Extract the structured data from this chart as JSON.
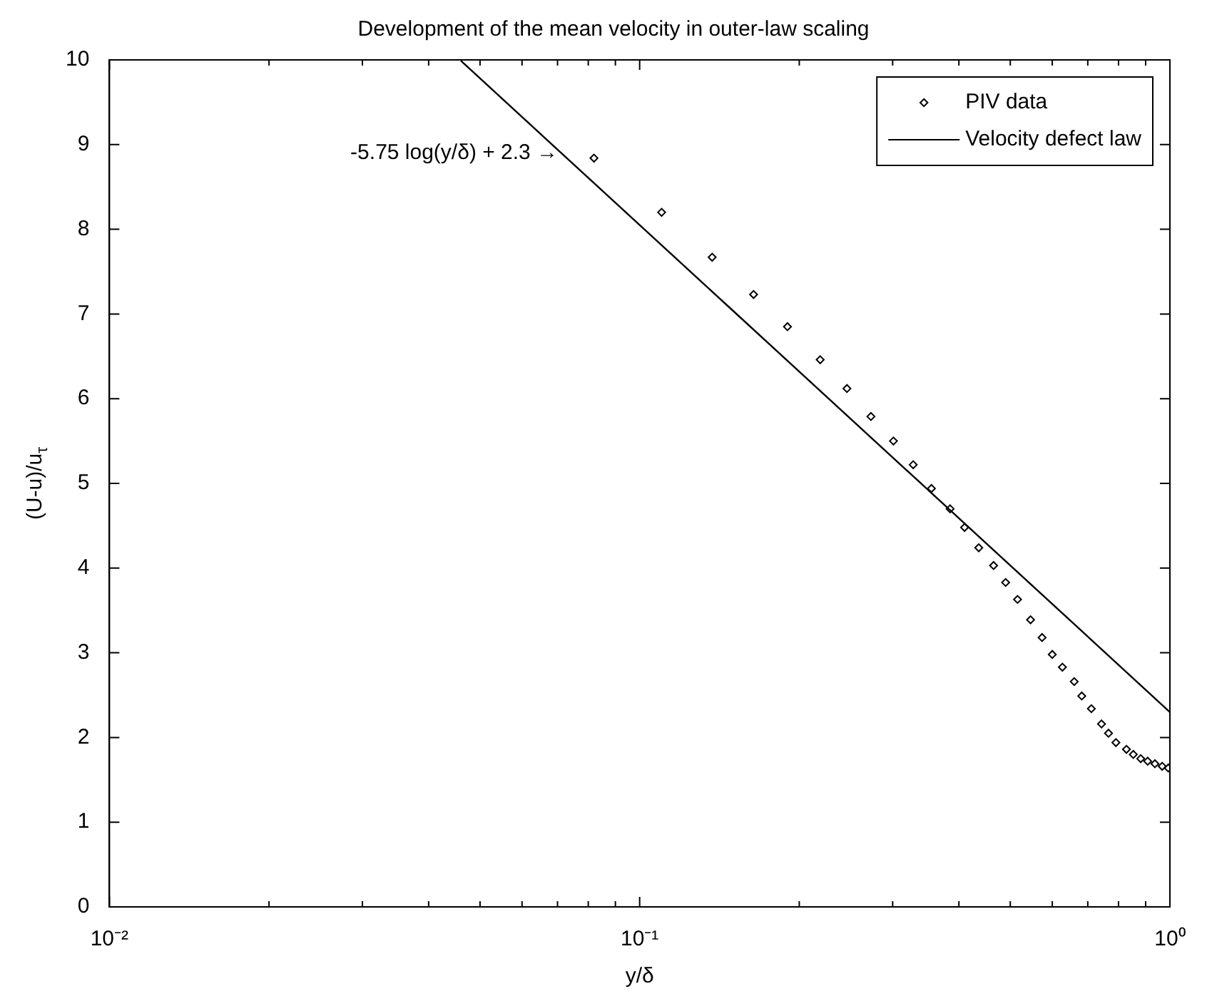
{
  "chart_data": {
    "type": "scatter",
    "title": "Development of the mean velocity in outer-law scaling",
    "xlabel": "y/δ",
    "ylabel": "(U-u)/u$_{τ}$",
    "log": "x",
    "xlim": [
      0.01,
      1
    ],
    "ylim": [
      0,
      10
    ],
    "xticks": [
      {
        "value": 0.01,
        "label": "10⁻²"
      },
      {
        "value": 0.02,
        "label": null
      },
      {
        "value": 0.03,
        "label": null
      },
      {
        "value": 0.04,
        "label": null
      },
      {
        "value": 0.05,
        "label": null
      },
      {
        "value": 0.06,
        "label": null
      },
      {
        "value": 0.07,
        "label": null
      },
      {
        "value": 0.08,
        "label": null
      },
      {
        "value": 0.09,
        "label": null
      },
      {
        "value": 0.1,
        "label": "10⁻¹"
      },
      {
        "value": 0.2,
        "label": null
      },
      {
        "value": 0.3,
        "label": null
      },
      {
        "value": 0.4,
        "label": null
      },
      {
        "value": 0.5,
        "label": null
      },
      {
        "value": 0.6,
        "label": null
      },
      {
        "value": 0.7,
        "label": null
      },
      {
        "value": 0.8,
        "label": null
      },
      {
        "value": 0.9,
        "label": null
      },
      {
        "value": 1,
        "label": "10⁰"
      }
    ],
    "yticks": [
      0,
      1,
      2,
      3,
      4,
      5,
      6,
      7,
      8,
      9,
      10
    ],
    "grid": false,
    "legend": "top right",
    "annotations": [
      {
        "text": "-5.75 log(y/δ) + 2.3 →",
        "x": 0.071,
        "y": 8.9
      }
    ],
    "series": [
      {
        "name": "PIV data",
        "type": "scatter",
        "marker": "diamond",
        "color": "#000000",
        "x": [
          0.082,
          0.11,
          0.137,
          0.164,
          0.19,
          0.219,
          0.246,
          0.273,
          0.301,
          0.328,
          0.355,
          0.385,
          0.41,
          0.436,
          0.465,
          0.49,
          0.516,
          0.546,
          0.574,
          0.6,
          0.627,
          0.66,
          0.682,
          0.711,
          0.743,
          0.766,
          0.791,
          0.828,
          0.853,
          0.881,
          0.908,
          0.937,
          0.967,
          0.993
        ],
        "values": [
          8.84,
          8.2,
          7.67,
          7.23,
          6.85,
          6.46,
          6.12,
          5.79,
          5.5,
          5.22,
          4.94,
          4.7,
          4.48,
          4.24,
          4.03,
          3.83,
          3.63,
          3.39,
          3.18,
          2.98,
          2.83,
          2.66,
          2.49,
          2.34,
          2.16,
          2.05,
          1.94,
          1.86,
          1.8,
          1.75,
          1.72,
          1.69,
          1.66,
          1.64
        ]
      },
      {
        "name": "Velocity defect law",
        "type": "line",
        "marker": "none",
        "line_style": "solid",
        "color": "#000000",
        "x": [
          0.046,
          1
        ],
        "values": [
          9.99,
          2.3
        ]
      }
    ]
  }
}
